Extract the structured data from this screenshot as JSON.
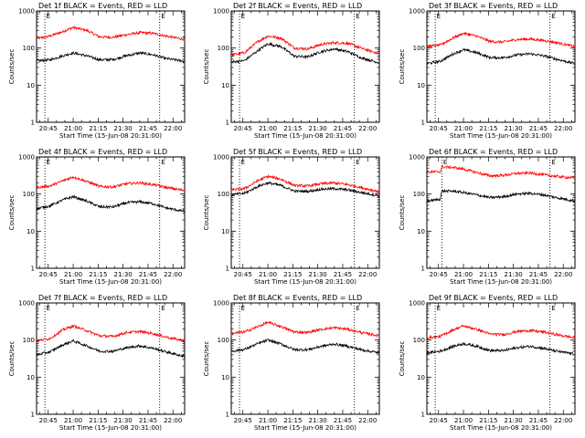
{
  "figure": {
    "xlabel": "Start Time (15-Jun-08 20:31:00)",
    "ylabel": "Counts/sec",
    "x_ticks": [
      "20:45",
      "21:00",
      "21:15",
      "21:30",
      "21:45",
      "22:00"
    ],
    "y_ticks": [
      "1",
      "10",
      "100",
      "1000"
    ],
    "marker_label": "E",
    "colors": {
      "events": "#000000",
      "lld": "#ff0000"
    }
  },
  "chart_data": [
    {
      "type": "line",
      "title": "Det 1f BLACK = Events, RED = LLD",
      "xlabel": "Start Time (15-Jun-08 20:31:00)",
      "ylabel": "Counts/sec",
      "xlim": [
        "20:38",
        "22:07"
      ],
      "ylim": [
        1,
        1000
      ],
      "yscale": "log",
      "vlines": [
        "20:43",
        "21:52"
      ],
      "series": [
        {
          "name": "Events",
          "color": "#000000",
          "x": [
            "20:38",
            "20:46",
            "20:54",
            "21:00",
            "21:08",
            "21:16",
            "21:24",
            "21:32",
            "21:40",
            "21:48",
            "21:56",
            "22:07"
          ],
          "y": [
            45,
            48,
            62,
            74,
            62,
            48,
            49,
            62,
            74,
            66,
            52,
            44
          ]
        },
        {
          "name": "LLD",
          "color": "#ff0000",
          "x": [
            "20:38",
            "20:46",
            "20:54",
            "21:00",
            "21:08",
            "21:16",
            "21:24",
            "21:32",
            "21:40",
            "21:48",
            "21:56",
            "22:07"
          ],
          "y": [
            180,
            210,
            280,
            360,
            300,
            200,
            195,
            230,
            260,
            250,
            210,
            170
          ]
        }
      ]
    },
    {
      "type": "line",
      "title": "Det 2f BLACK = Events, RED = LLD",
      "xlabel": "Start Time (15-Jun-08 20:31:00)",
      "ylabel": "Counts/sec",
      "xlim": [
        "20:38",
        "22:07"
      ],
      "ylim": [
        1,
        1000
      ],
      "yscale": "log",
      "vlines": [
        "20:43",
        "21:52"
      ],
      "series": [
        {
          "name": "Events",
          "color": "#000000",
          "x": [
            "20:38",
            "20:46",
            "20:54",
            "21:00",
            "21:08",
            "21:16",
            "21:24",
            "21:32",
            "21:40",
            "21:48",
            "21:56",
            "22:07"
          ],
          "y": [
            42,
            46,
            85,
            130,
            110,
            60,
            58,
            80,
            95,
            80,
            55,
            40
          ]
        },
        {
          "name": "LLD",
          "color": "#ff0000",
          "x": [
            "20:38",
            "20:46",
            "20:54",
            "21:00",
            "21:08",
            "21:16",
            "21:24",
            "21:32",
            "21:40",
            "21:48",
            "21:56",
            "22:07"
          ],
          "y": [
            65,
            75,
            150,
            210,
            185,
            100,
            95,
            125,
            140,
            135,
            100,
            70
          ]
        }
      ]
    },
    {
      "type": "line",
      "title": "Det 3f BLACK = Events, RED = LLD",
      "xlabel": "Start Time (15-Jun-08 20:31:00)",
      "ylabel": "Counts/sec",
      "xlim": [
        "20:38",
        "22:07"
      ],
      "ylim": [
        1,
        1000
      ],
      "yscale": "log",
      "vlines": [
        "20:43",
        "21:52"
      ],
      "series": [
        {
          "name": "Events",
          "color": "#000000",
          "x": [
            "20:38",
            "20:46",
            "20:54",
            "21:00",
            "21:08",
            "21:16",
            "21:24",
            "21:32",
            "21:40",
            "21:48",
            "21:56",
            "22:07"
          ],
          "y": [
            38,
            44,
            70,
            90,
            75,
            55,
            55,
            65,
            70,
            62,
            50,
            38
          ]
        },
        {
          "name": "LLD",
          "color": "#ff0000",
          "x": [
            "20:38",
            "20:46",
            "20:54",
            "21:00",
            "21:08",
            "21:16",
            "21:24",
            "21:32",
            "21:40",
            "21:48",
            "21:56",
            "22:07"
          ],
          "y": [
            110,
            120,
            190,
            250,
            210,
            150,
            145,
            170,
            175,
            160,
            140,
            110
          ]
        }
      ]
    },
    {
      "type": "line",
      "title": "Det 4f BLACK = Events, RED = LLD",
      "xlabel": "Start Time (15-Jun-08 20:31:00)",
      "ylabel": "Counts/sec",
      "xlim": [
        "20:38",
        "22:07"
      ],
      "ylim": [
        1,
        1000
      ],
      "yscale": "log",
      "vlines": [
        "20:43",
        "21:52"
      ],
      "series": [
        {
          "name": "Events",
          "color": "#000000",
          "x": [
            "20:38",
            "20:46",
            "20:54",
            "21:00",
            "21:08",
            "21:16",
            "21:24",
            "21:32",
            "21:40",
            "21:48",
            "21:56",
            "22:07"
          ],
          "y": [
            40,
            48,
            70,
            85,
            65,
            45,
            45,
            58,
            62,
            55,
            42,
            34
          ]
        },
        {
          "name": "LLD",
          "color": "#ff0000",
          "x": [
            "20:38",
            "20:46",
            "20:54",
            "21:00",
            "21:08",
            "21:16",
            "21:24",
            "21:32",
            "21:40",
            "21:48",
            "21:56",
            "22:07"
          ],
          "y": [
            150,
            165,
            230,
            290,
            220,
            160,
            155,
            190,
            200,
            180,
            150,
            125
          ]
        }
      ]
    },
    {
      "type": "line",
      "title": "Det 5f BLACK = Events, RED = LLD",
      "xlabel": "Start Time (15-Jun-08 20:31:00)",
      "ylabel": "Counts/sec",
      "xlim": [
        "20:38",
        "22:07"
      ],
      "ylim": [
        1,
        1000
      ],
      "yscale": "log",
      "vlines": [
        "20:43",
        "21:52"
      ],
      "series": [
        {
          "name": "Events",
          "color": "#000000",
          "x": [
            "20:38",
            "20:46",
            "20:54",
            "21:00",
            "21:08",
            "21:16",
            "21:24",
            "21:32",
            "21:40",
            "21:48",
            "21:56",
            "22:07"
          ],
          "y": [
            95,
            105,
            160,
            200,
            170,
            120,
            118,
            135,
            140,
            130,
            110,
            90
          ]
        },
        {
          "name": "LLD",
          "color": "#ff0000",
          "x": [
            "20:38",
            "20:46",
            "20:54",
            "21:00",
            "21:08",
            "21:16",
            "21:24",
            "21:32",
            "21:40",
            "21:48",
            "21:56",
            "22:07"
          ],
          "y": [
            130,
            140,
            230,
            300,
            250,
            170,
            165,
            190,
            200,
            180,
            150,
            115
          ]
        }
      ]
    },
    {
      "type": "line",
      "title": "Det 6f BLACK = Events, RED = LLD",
      "xlabel": "Start Time (15-Jun-08 20:31:00)",
      "ylabel": "Counts/sec",
      "xlim": [
        "20:38",
        "22:07"
      ],
      "ylim": [
        1,
        1000
      ],
      "yscale": "log",
      "vlines": [
        "20:47",
        "21:52"
      ],
      "series": [
        {
          "name": "Events",
          "color": "#000000",
          "x": [
            "20:38",
            "20:46",
            "20:47",
            "20:54",
            "21:00",
            "21:08",
            "21:16",
            "21:24",
            "21:32",
            "21:40",
            "21:48",
            "21:56",
            "22:07"
          ],
          "y": [
            65,
            72,
            120,
            120,
            110,
            95,
            80,
            85,
            100,
            105,
            95,
            80,
            65
          ]
        },
        {
          "name": "LLD",
          "color": "#ff0000",
          "x": [
            "20:38",
            "20:46",
            "20:47",
            "20:54",
            "21:00",
            "21:08",
            "21:16",
            "21:24",
            "21:32",
            "21:40",
            "21:48",
            "21:56",
            "22:07"
          ],
          "y": [
            390,
            400,
            540,
            520,
            470,
            380,
            310,
            320,
            360,
            370,
            330,
            300,
            270
          ]
        }
      ]
    },
    {
      "type": "line",
      "title": "Det 7f BLACK = Events, RED = LLD",
      "xlabel": "Start Time (15-Jun-08 20:31:00)",
      "ylabel": "Counts/sec",
      "xlim": [
        "20:38",
        "22:07"
      ],
      "ylim": [
        1,
        1000
      ],
      "yscale": "log",
      "vlines": [
        "20:43",
        "21:52"
      ],
      "series": [
        {
          "name": "Events",
          "color": "#000000",
          "x": [
            "20:38",
            "20:46",
            "20:54",
            "21:00",
            "21:08",
            "21:16",
            "21:24",
            "21:32",
            "21:40",
            "21:48",
            "21:56",
            "22:07"
          ],
          "y": [
            40,
            48,
            75,
            95,
            70,
            50,
            50,
            62,
            70,
            60,
            48,
            36
          ]
        },
        {
          "name": "LLD",
          "color": "#ff0000",
          "x": [
            "20:38",
            "20:46",
            "20:54",
            "21:00",
            "21:08",
            "21:16",
            "21:24",
            "21:32",
            "21:40",
            "21:48",
            "21:56",
            "22:07"
          ],
          "y": [
            95,
            110,
            190,
            240,
            180,
            130,
            125,
            160,
            170,
            150,
            120,
            95
          ]
        }
      ]
    },
    {
      "type": "line",
      "title": "Det 8f BLACK = Events, RED = LLD",
      "xlabel": "Start Time (15-Jun-08 20:31:00)",
      "ylabel": "Counts/sec",
      "xlim": [
        "20:38",
        "22:07"
      ],
      "ylim": [
        1,
        1000
      ],
      "yscale": "log",
      "vlines": [
        "20:43",
        "21:52"
      ],
      "series": [
        {
          "name": "Events",
          "color": "#000000",
          "x": [
            "20:38",
            "20:46",
            "20:54",
            "21:00",
            "21:08",
            "21:16",
            "21:24",
            "21:32",
            "21:40",
            "21:48",
            "21:56",
            "22:07"
          ],
          "y": [
            50,
            56,
            80,
            100,
            78,
            55,
            55,
            68,
            78,
            68,
            55,
            45
          ]
        },
        {
          "name": "LLD",
          "color": "#ff0000",
          "x": [
            "20:38",
            "20:46",
            "20:54",
            "21:00",
            "21:08",
            "21:16",
            "21:24",
            "21:32",
            "21:40",
            "21:48",
            "21:56",
            "22:07"
          ],
          "y": [
            150,
            165,
            230,
            300,
            230,
            165,
            160,
            195,
            215,
            195,
            160,
            130
          ]
        }
      ]
    },
    {
      "type": "line",
      "title": "Det 9f BLACK = Events, RED = LLD",
      "xlabel": "Start Time (15-Jun-08 20:31:00)",
      "ylabel": "Counts/sec",
      "xlim": [
        "20:38",
        "22:07"
      ],
      "ylim": [
        1,
        1000
      ],
      "yscale": "log",
      "vlines": [
        "20:43",
        "21:52"
      ],
      "series": [
        {
          "name": "Events",
          "color": "#000000",
          "x": [
            "20:38",
            "20:46",
            "20:54",
            "21:00",
            "21:08",
            "21:16",
            "21:24",
            "21:32",
            "21:40",
            "21:48",
            "21:56",
            "22:07"
          ],
          "y": [
            45,
            50,
            68,
            80,
            68,
            52,
            52,
            62,
            68,
            60,
            50,
            42
          ]
        },
        {
          "name": "LLD",
          "color": "#ff0000",
          "x": [
            "20:38",
            "20:46",
            "20:54",
            "21:00",
            "21:08",
            "21:16",
            "21:24",
            "21:32",
            "21:40",
            "21:48",
            "21:56",
            "22:07"
          ],
          "y": [
            115,
            125,
            190,
            240,
            195,
            145,
            140,
            170,
            180,
            165,
            140,
            115
          ]
        }
      ]
    }
  ]
}
